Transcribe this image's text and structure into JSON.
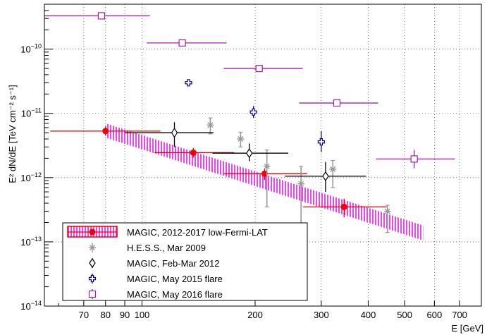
{
  "chart_data": {
    "type": "scatter",
    "title": "",
    "xlabel": "E [GeV]",
    "ylabel": "E² dN/dE [TeV cm⁻² s⁻¹]",
    "xscale": "log",
    "yscale": "log",
    "xlim": [
      55,
      800
    ],
    "ylim": [
      1e-14,
      5e-10
    ],
    "grid": true,
    "legend_position": "bottom-left",
    "x_ticks": [
      {
        "value": 70,
        "label": "70"
      },
      {
        "value": 80,
        "label": "80"
      },
      {
        "value": 90,
        "label": "90"
      },
      {
        "value": 100,
        "label": "100"
      },
      {
        "value": 200,
        "label": "200"
      },
      {
        "value": 300,
        "label": "300"
      },
      {
        "value": 400,
        "label": "400"
      },
      {
        "value": 500,
        "label": "500"
      },
      {
        "value": 600,
        "label": "600"
      },
      {
        "value": 700,
        "label": "700"
      }
    ],
    "y_ticks": [
      {
        "value": 1e-14,
        "base": "10",
        "exp": "−14"
      },
      {
        "value": 1e-13,
        "base": "10",
        "exp": "−13"
      },
      {
        "value": 1e-12,
        "base": "10",
        "exp": "−12"
      },
      {
        "value": 1e-11,
        "base": "10",
        "exp": "−11"
      },
      {
        "value": 1e-10,
        "base": "10",
        "exp": "−10"
      }
    ],
    "band": {
      "name": "MAGIC, 2012-2017 low-Fermi-LAT",
      "color": "#ee44ee",
      "upper": [
        [
          80,
          7e-12
        ],
        [
          560,
          1.8e-13
        ]
      ],
      "lower": [
        [
          80,
          4.2e-12
        ],
        [
          560,
          1.05e-13
        ]
      ]
    },
    "series": [
      {
        "name": "MAGIC, 2012-2017 low-Fermi-LAT",
        "color": "#ee0000",
        "marker": "filled-circle",
        "points": [
          {
            "x": 80,
            "y": 5.3e-12,
            "xlo": 57,
            "xhi": 112,
            "ylo": 4.5e-12,
            "yhi": 6.3e-12
          },
          {
            "x": 137,
            "y": 2.45e-12,
            "xlo": 108,
            "xhi": 176,
            "ylo": 2.05e-12,
            "yhi": 2.9e-12
          },
          {
            "x": 212,
            "y": 1.15e-12,
            "xlo": 165,
            "xhi": 275,
            "ylo": 9.2e-13,
            "yhi": 1.4e-12
          },
          {
            "x": 345,
            "y": 3.5e-13,
            "xlo": 268,
            "xhi": 448,
            "ylo": 2.4e-13,
            "yhi": 4.7e-13
          }
        ]
      },
      {
        "name": "H.E.S.S., Mar 2009",
        "color": "#999999",
        "marker": "star",
        "points": [
          {
            "x": 152,
            "y": 6.6e-12,
            "ylo": 4.8e-12,
            "yhi": 8.5e-12
          },
          {
            "x": 183,
            "y": 4e-12,
            "ylo": 3e-12,
            "yhi": 5.1e-12
          },
          {
            "x": 215,
            "y": 1.5e-12,
            "ylo": 3.5e-13,
            "yhi": 2.7e-12
          },
          {
            "x": 265,
            "y": 8e-13,
            "ylo": 1.5e-13,
            "yhi": 1.5e-12
          },
          {
            "x": 322,
            "y": 1.35e-12,
            "ylo": 7e-13,
            "yhi": 1.85e-12
          },
          {
            "x": 450,
            "y": 3e-13,
            "ylo": 1.4e-13,
            "yhi": 3.7e-13
          }
        ]
      },
      {
        "name": "MAGIC, Feb-Mar 2012",
        "color": "#000000",
        "marker": "open-diamond",
        "points": [
          {
            "x": 122,
            "y": 5e-12,
            "xlo": 90,
            "xhi": 155,
            "ylo": 3e-12,
            "yhi": 7.3e-12
          },
          {
            "x": 193,
            "y": 2.4e-12,
            "xlo": 154,
            "xhi": 245,
            "ylo": 1.8e-12,
            "yhi": 3.4e-12
          },
          {
            "x": 308,
            "y": 1.05e-12,
            "xlo": 240,
            "xhi": 395,
            "ylo": 6e-13,
            "yhi": 1.75e-12
          }
        ]
      },
      {
        "name": "MAGIC, May 2015 flare",
        "color": "#00008b",
        "marker": "open-cross",
        "points": [
          {
            "x": 133,
            "y": 3e-11,
            "xlo": 131,
            "xhi": 135,
            "ylo": 2.7e-11,
            "yhi": 3.3e-11
          },
          {
            "x": 198,
            "y": 1.05e-11,
            "xlo": 195,
            "xhi": 201,
            "ylo": 8.5e-12,
            "yhi": 1.3e-11
          },
          {
            "x": 300,
            "y": 3.6e-12,
            "xlo": 297,
            "xhi": 303,
            "ylo": 2.5e-12,
            "yhi": 5.3e-12
          }
        ]
      },
      {
        "name": "MAGIC, May 2016 flare",
        "color": "#a020a0",
        "marker": "open-square",
        "points": [
          {
            "x": 78,
            "y": 3.3e-10,
            "xlo": 55,
            "xhi": 105,
            "ylo": 3.1e-10,
            "yhi": 3.5e-10
          },
          {
            "x": 128,
            "y": 1.25e-10,
            "xlo": 103,
            "xhi": 168,
            "ylo": 1.18e-10,
            "yhi": 1.33e-10
          },
          {
            "x": 205,
            "y": 5e-11,
            "xlo": 165,
            "xhi": 268,
            "ylo": 4.65e-11,
            "yhi": 5.35e-11
          },
          {
            "x": 330,
            "y": 1.45e-11,
            "xlo": 262,
            "xhi": 425,
            "ylo": 1.33e-11,
            "yhi": 1.58e-11
          },
          {
            "x": 530,
            "y": 1.95e-12,
            "xlo": 420,
            "xhi": 680,
            "ylo": 1.4e-12,
            "yhi": 2.7e-12
          }
        ]
      }
    ]
  }
}
